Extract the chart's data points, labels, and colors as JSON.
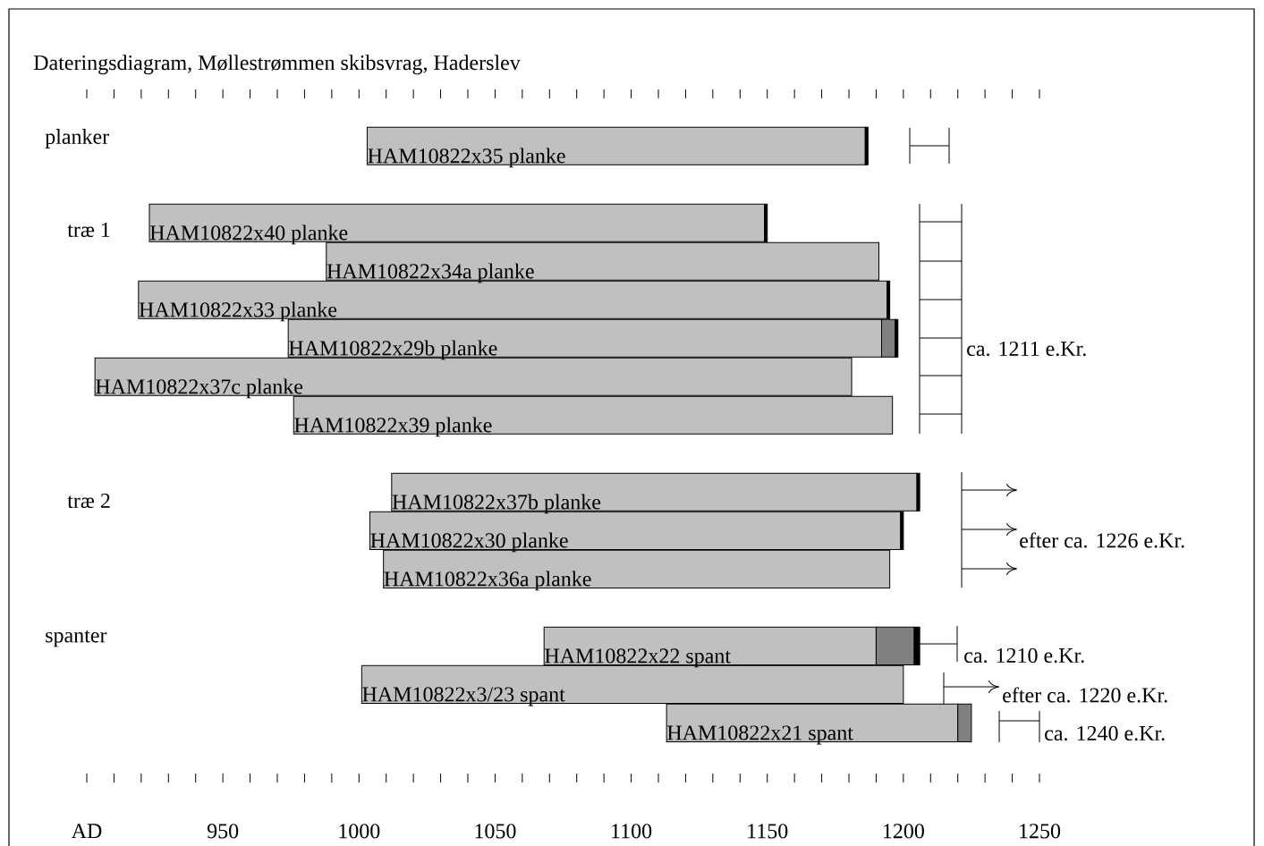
{
  "chart_data": {
    "type": "bar",
    "orientation": "horizontal",
    "title": "Dateringsdiagram, Møllestrømmen skibsvrag, Haderslev",
    "categories": [
      "HAM10822x35 planke",
      null,
      "HAM10822x40 planke",
      "HAM10822x34a planke",
      "HAM10822x33 planke",
      "HAM10822x29b planke",
      "HAM10822x37c planke",
      "HAM10822x39 planke",
      null,
      "HAM10822x37b planke",
      "HAM10822x30 planke",
      "HAM10822x36a planke",
      null,
      "HAM10822x22 spant",
      "HAM10822x3/23 spant",
      "HAM10822x21 spant"
    ],
    "series": [
      {
        "color": "#c0c0c0",
        "base": [
          1003,
          null,
          923,
          988,
          919,
          974,
          903,
          976,
          null,
          1012,
          1004,
          1009,
          null,
          1068,
          1001,
          1113
        ],
        "values": [
          183,
          null,
          226,
          203,
          275,
          218,
          278,
          220,
          null,
          193,
          195,
          186,
          null,
          122,
          199,
          107
        ]
      },
      {
        "color": "#808080",
        "base": [
          null,
          null,
          null,
          null,
          null,
          1192,
          null,
          null,
          null,
          null,
          null,
          null,
          null,
          1190,
          null,
          1220
        ],
        "values": [
          null,
          null,
          null,
          null,
          null,
          5,
          null,
          null,
          null,
          null,
          null,
          null,
          null,
          14,
          null,
          5
        ]
      },
      {
        "color": "#000000",
        "base": [
          1186,
          null,
          1149,
          null,
          1194,
          1197,
          null,
          null,
          null,
          1205,
          1199,
          null,
          null,
          1204,
          null,
          null
        ],
        "values": [
          1,
          null,
          1,
          null,
          1,
          1,
          null,
          null,
          null,
          1,
          1,
          null,
          null,
          2,
          null,
          null
        ]
      }
    ],
    "xlim": [
      900,
      1250
    ],
    "xticks": [
      {
        "value": 900,
        "label": "AD"
      },
      950,
      1000,
      1050,
      1100,
      1150,
      1200,
      1250
    ],
    "annotations": [
      "planker",
      "træ 1",
      "træ 2",
      "spanter",
      "ca. 1211 e.Kr.",
      "efter ca. 1226 e.Kr.",
      "ca. 1210 e.Kr.",
      "efter ca. 1220 e.Kr.",
      "ca. 1240 e.Kr."
    ]
  }
}
